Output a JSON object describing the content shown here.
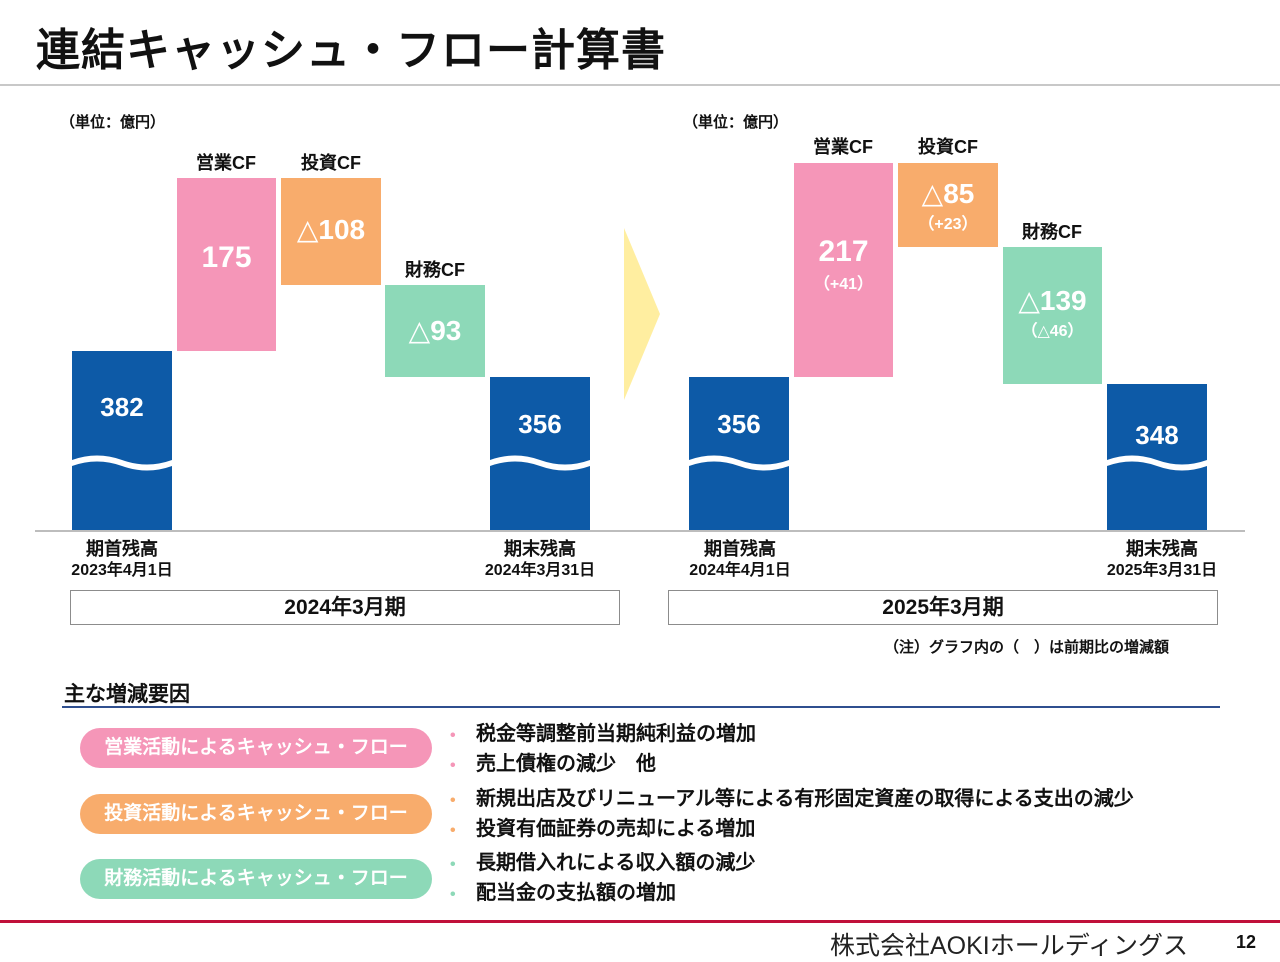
{
  "title": "連結キャッシュ・フロー計算書",
  "colors": {
    "balance": "#0D5AA7",
    "operating": "#F596B8",
    "investing": "#F8AC6C",
    "financing": "#8DD9B8",
    "arrow": "#FFEEA0",
    "red_rule": "#C0103A"
  },
  "left_chart": {
    "unit": "（単位：億円）",
    "period": "2024年3月期",
    "start": {
      "value": "382",
      "label1": "期首残高",
      "label2": "2023年4月1日"
    },
    "operating": {
      "name": "営業CF",
      "value": "175"
    },
    "investing": {
      "name": "投資CF",
      "value": "△108"
    },
    "financing": {
      "name": "財務CF",
      "value": "△93"
    },
    "end": {
      "value": "356",
      "label1": "期末残高",
      "label2": "2024年3月31日"
    }
  },
  "right_chart": {
    "unit": "（単位：億円）",
    "period": "2025年3月期",
    "start": {
      "value": "356",
      "label1": "期首残高",
      "label2": "2024年4月1日"
    },
    "operating": {
      "name": "営業CF",
      "value": "217",
      "change": "（+41）"
    },
    "investing": {
      "name": "投資CF",
      "value": "△85",
      "change": "（+23）"
    },
    "financing": {
      "name": "財務CF",
      "value": "△139",
      "change": "（△46）"
    },
    "end": {
      "value": "348",
      "label1": "期末残高",
      "label2": "2025年3月31日"
    },
    "note": "（注）グラフ内の（　）は前期比の増減額"
  },
  "factors": {
    "title": "主な増減要因",
    "items": [
      {
        "label": "営業活動によるキャッシュ・フロー",
        "color": "#F596B8",
        "bullets": [
          "税金等調整前当期純利益の増加",
          "売上債権の減少　他"
        ]
      },
      {
        "label": "投資活動によるキャッシュ・フロー",
        "color": "#F8AC6C",
        "bullets": [
          "新規出店及びリニューアル等による有形固定資産の取得による支出の減少",
          "投資有価証券の売却による増加"
        ]
      },
      {
        "label": "財務活動によるキャッシュ・フロー",
        "color": "#8DD9B8",
        "bullets": [
          "長期借入れによる収入額の減少",
          "配当金の支払額の増加"
        ]
      }
    ]
  },
  "footer": {
    "company": "株式会社AOKIホールディングス",
    "page": "12"
  }
}
